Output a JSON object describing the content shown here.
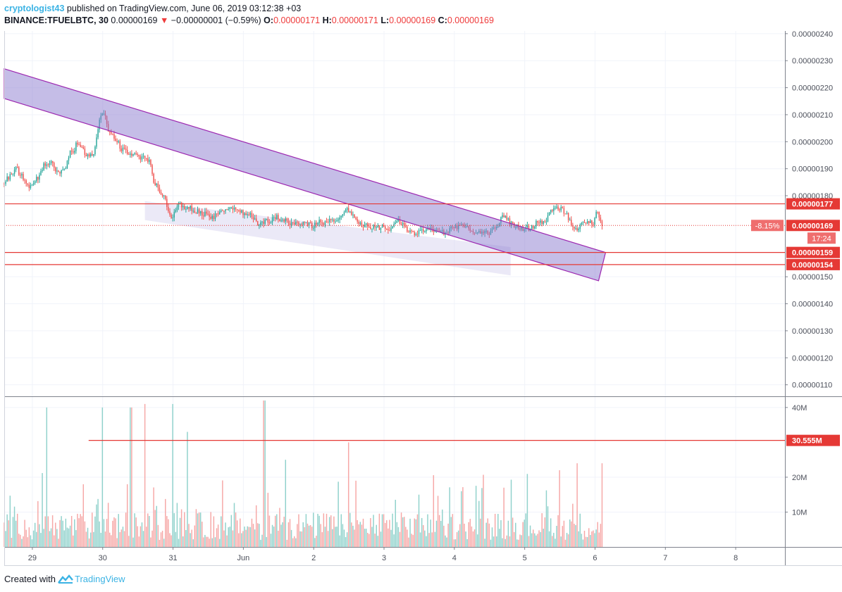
{
  "header": {
    "user": "cryptologist43",
    "published": " published on TradingView.com, June 06, 2019 03:12:38 +03",
    "symbol": "BINANCE:TFUELBTC, 30",
    "last": "0.00000169",
    "change_arrow": "▼",
    "change": "−0.00000001 (−0.59%)",
    "o_label": "O:",
    "o": "0.00000171",
    "h_label": "H:",
    "h": "0.00000171",
    "l_label": "L:",
    "l": "0.00000169",
    "c_label": "C:",
    "c": "0.00000169"
  },
  "footer": {
    "created": "Created with",
    "brand": "TradingView",
    "logo_icon": "tradingview-logo-icon"
  },
  "colors": {
    "up": "#26a69a",
    "down": "#ef5350",
    "vol_up": "#8fd1cb",
    "vol_down": "#f6a7a6",
    "level": "#e53935",
    "channel_stroke": "#9c27b0",
    "channel_fill": "#8b7bd0",
    "light_channel_fill": "#d8d4f0"
  },
  "chart_data": {
    "type": "candlestick",
    "symbol": "BINANCE:TFUELBTC",
    "interval": "30",
    "price_axis": {
      "ticks": [
        "0.00000110",
        "0.00000120",
        "0.00000130",
        "0.00000140",
        "0.00000150",
        "0.00000180",
        "0.00000190",
        "0.00000200",
        "0.00000210",
        "0.00000220",
        "0.00000230",
        "0.00000240"
      ],
      "range": [
        1.06e-06,
        2.41e-06
      ]
    },
    "time_axis": {
      "ticks": [
        {
          "label": "29",
          "day": 0
        },
        {
          "label": "30",
          "day": 1
        },
        {
          "label": "31",
          "day": 2
        },
        {
          "label": "Jun",
          "day": 3
        },
        {
          "label": "2",
          "day": 4
        },
        {
          "label": "3",
          "day": 5
        },
        {
          "label": "4",
          "day": 6
        },
        {
          "label": "5",
          "day": 7
        },
        {
          "label": "6",
          "day": 8
        },
        {
          "label": "7",
          "day": 9
        },
        {
          "label": "8",
          "day": 10
        }
      ],
      "range": [
        -0.4,
        10.7
      ]
    },
    "price_path": [
      [
        -0.4,
        184.5
      ],
      [
        -0.3,
        187
      ],
      [
        -0.2,
        190
      ],
      [
        -0.1,
        186
      ],
      [
        0.0,
        183
      ],
      [
        0.1,
        187
      ],
      [
        0.2,
        192
      ],
      [
        0.3,
        193
      ],
      [
        0.35,
        190
      ],
      [
        0.4,
        189
      ],
      [
        0.5,
        191
      ],
      [
        0.55,
        196
      ],
      [
        0.6,
        195
      ],
      [
        0.65,
        200
      ],
      [
        0.7,
        198
      ],
      [
        0.8,
        195
      ],
      [
        0.9,
        195
      ],
      [
        0.95,
        205
      ],
      [
        1.0,
        211
      ],
      [
        1.05,
        210
      ],
      [
        1.1,
        203
      ],
      [
        1.2,
        201
      ],
      [
        1.3,
        197
      ],
      [
        1.4,
        196
      ],
      [
        1.5,
        195
      ],
      [
        1.6,
        194
      ],
      [
        1.7,
        193
      ],
      [
        1.75,
        185
      ],
      [
        1.8,
        184
      ],
      [
        1.85,
        180
      ],
      [
        1.9,
        179
      ],
      [
        1.95,
        175
      ],
      [
        2.0,
        172
      ],
      [
        2.1,
        177
      ],
      [
        2.2,
        176
      ],
      [
        2.3,
        175
      ],
      [
        2.4,
        174
      ],
      [
        2.5,
        173
      ],
      [
        2.6,
        172
      ],
      [
        2.7,
        174
      ],
      [
        2.8,
        176
      ],
      [
        2.9,
        175
      ],
      [
        3.0,
        174
      ],
      [
        3.1,
        173
      ],
      [
        3.15,
        173
      ],
      [
        3.2,
        170
      ],
      [
        3.3,
        170
      ],
      [
        3.4,
        171
      ],
      [
        3.5,
        172
      ],
      [
        3.6,
        171
      ],
      [
        3.7,
        170
      ],
      [
        3.8,
        170
      ],
      [
        3.9,
        170
      ],
      [
        4.0,
        169
      ],
      [
        4.1,
        170
      ],
      [
        4.2,
        170
      ],
      [
        4.3,
        171
      ],
      [
        4.4,
        172
      ],
      [
        4.5,
        175
      ],
      [
        4.6,
        172
      ],
      [
        4.7,
        169
      ],
      [
        4.8,
        169
      ],
      [
        4.9,
        168
      ],
      [
        5.0,
        168
      ],
      [
        5.1,
        168
      ],
      [
        5.2,
        171
      ],
      [
        5.3,
        169
      ],
      [
        5.4,
        166
      ],
      [
        5.5,
        166
      ],
      [
        5.6,
        167
      ],
      [
        5.7,
        168
      ],
      [
        5.8,
        167
      ],
      [
        5.9,
        166
      ],
      [
        6.0,
        168
      ],
      [
        6.1,
        169
      ],
      [
        6.2,
        168
      ],
      [
        6.3,
        167
      ],
      [
        6.4,
        167
      ],
      [
        6.5,
        166
      ],
      [
        6.6,
        168
      ],
      [
        6.7,
        172
      ],
      [
        6.75,
        173
      ],
      [
        6.8,
        170
      ],
      [
        6.9,
        169
      ],
      [
        7.0,
        168
      ],
      [
        7.1,
        168
      ],
      [
        7.2,
        170
      ],
      [
        7.3,
        170
      ],
      [
        7.4,
        174
      ],
      [
        7.5,
        176
      ],
      [
        7.6,
        174
      ],
      [
        7.7,
        169
      ],
      [
        7.75,
        167
      ],
      [
        7.8,
        168
      ],
      [
        7.9,
        171
      ],
      [
        8.0,
        170
      ],
      [
        8.05,
        174
      ],
      [
        8.1,
        171
      ],
      [
        8.12,
        169
      ]
    ],
    "volume_axis": {
      "ticks": [
        "10M",
        "20M",
        "40M"
      ],
      "range": [
        0,
        43
      ]
    },
    "volume_spikes": [
      [
        0.2,
        40
      ],
      [
        1.0,
        40
      ],
      [
        1.4,
        40
      ],
      [
        1.6,
        41
      ],
      [
        2.0,
        41
      ],
      [
        2.2,
        33
      ],
      [
        3.3,
        42
      ],
      [
        3.6,
        25
      ],
      [
        4.5,
        30
      ],
      [
        4.6,
        19
      ],
      [
        5.5,
        15
      ],
      [
        6.1,
        16
      ],
      [
        6.7,
        17
      ],
      [
        7.5,
        22
      ],
      [
        7.75,
        24
      ],
      [
        8.1,
        24
      ]
    ],
    "channel": {
      "upper": [
        [
          -0.4,
          2.27e-06
        ],
        [
          8.15,
          1.59e-06
        ]
      ],
      "lower": [
        [
          -0.4,
          2.16e-06
        ],
        [
          8.05,
          1.485e-06
        ]
      ]
    },
    "light_channel": [
      [
        1.6,
        1.78e-06
      ],
      [
        6.8,
        1.61e-06
      ],
      [
        6.8,
        1.505e-06
      ],
      [
        1.6,
        1.71e-06
      ]
    ],
    "levels": [
      {
        "label": "0.00000177",
        "value": 1.77e-06
      },
      {
        "label": "0.00000159",
        "value": 1.59e-06
      },
      {
        "label": "0.00000154",
        "value": 1.545e-06
      }
    ],
    "current_price": {
      "label": "0.00000169",
      "value": 1.69e-06,
      "change_label": "-8.15%",
      "countdown": "17:24"
    },
    "volume_level": {
      "label": "30.555M",
      "value": 30.555,
      "from_day": 0.8
    }
  }
}
